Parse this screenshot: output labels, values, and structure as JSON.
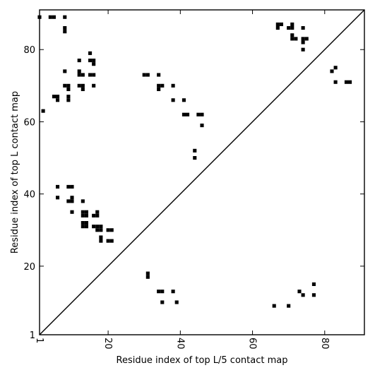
{
  "chart_data": {
    "type": "scatter",
    "title": "",
    "xlabel": "Residue index of top L/5 contact map",
    "ylabel": "Residue index of top L contact map",
    "xlim": [
      1,
      91
    ],
    "ylim": [
      1,
      91
    ],
    "x_ticks": [
      {
        "value": 1,
        "label": "1"
      },
      {
        "value": 20,
        "label": "20"
      },
      {
        "value": 40,
        "label": "40"
      },
      {
        "value": 60,
        "label": "60"
      },
      {
        "value": 80,
        "label": "80"
      }
    ],
    "y_ticks": [
      {
        "value": 1,
        "label": "1"
      },
      {
        "value": 20,
        "label": "20"
      },
      {
        "value": 40,
        "label": "40"
      },
      {
        "value": 60,
        "label": "60"
      },
      {
        "value": 80,
        "label": "80"
      }
    ],
    "x_tick_rotation": 90,
    "grid": false,
    "diagonal": true,
    "marker": "square",
    "marker_color": "#000000",
    "series": [
      {
        "region": "upper-left",
        "points": [
          [
            1,
            89
          ],
          [
            2,
            63
          ],
          [
            4,
            89
          ],
          [
            5,
            89
          ],
          [
            8,
            89
          ],
          [
            8,
            86
          ],
          [
            8,
            85
          ],
          [
            8,
            74
          ],
          [
            8,
            70
          ],
          [
            9,
            70
          ],
          [
            9,
            69
          ],
          [
            9,
            67
          ],
          [
            9,
            66
          ],
          [
            5,
            67
          ],
          [
            6,
            67
          ],
          [
            6,
            66
          ],
          [
            12,
            77
          ],
          [
            12,
            74
          ],
          [
            12,
            73
          ],
          [
            13,
            73
          ],
          [
            12,
            70
          ],
          [
            13,
            70
          ],
          [
            13,
            69
          ],
          [
            15,
            79
          ],
          [
            15,
            77
          ],
          [
            16,
            77
          ],
          [
            16,
            76
          ],
          [
            15,
            73
          ],
          [
            16,
            73
          ],
          [
            16,
            70
          ],
          [
            30,
            73
          ],
          [
            31,
            73
          ],
          [
            34,
            73
          ],
          [
            34,
            70
          ],
          [
            34,
            69
          ],
          [
            35,
            70
          ],
          [
            38,
            70
          ],
          [
            38,
            66
          ],
          [
            41,
            66
          ],
          [
            41,
            62
          ],
          [
            42,
            62
          ],
          [
            45,
            62
          ],
          [
            46,
            62
          ],
          [
            46,
            59
          ],
          [
            44,
            52
          ],
          [
            44,
            50
          ],
          [
            6,
            42
          ],
          [
            9,
            42
          ],
          [
            10,
            42
          ],
          [
            6,
            39
          ],
          [
            10,
            39
          ],
          [
            9,
            38
          ],
          [
            10,
            38
          ],
          [
            13,
            38
          ],
          [
            10,
            35
          ],
          [
            13,
            35
          ],
          [
            14,
            35
          ],
          [
            13,
            34
          ],
          [
            14,
            34
          ],
          [
            17,
            35
          ],
          [
            16,
            34
          ],
          [
            17,
            34
          ],
          [
            13,
            32
          ],
          [
            14,
            32
          ],
          [
            13,
            31
          ],
          [
            14,
            31
          ],
          [
            16,
            31
          ],
          [
            17,
            31
          ],
          [
            18,
            31
          ],
          [
            17,
            30
          ],
          [
            18,
            30
          ],
          [
            20,
            30
          ],
          [
            21,
            30
          ],
          [
            18,
            28
          ],
          [
            18,
            27
          ],
          [
            20,
            27
          ],
          [
            21,
            27
          ]
        ]
      },
      {
        "region": "upper-right",
        "points": [
          [
            67,
            87
          ],
          [
            68,
            87
          ],
          [
            67,
            86
          ],
          [
            70,
            86
          ],
          [
            71,
            86
          ],
          [
            71,
            87
          ],
          [
            71,
            84
          ],
          [
            71,
            83
          ],
          [
            72,
            83
          ],
          [
            74,
            86
          ],
          [
            74,
            83
          ],
          [
            75,
            83
          ],
          [
            74,
            82
          ],
          [
            74,
            80
          ],
          [
            82,
            74
          ],
          [
            83,
            75
          ],
          [
            83,
            71
          ],
          [
            86,
            71
          ],
          [
            87,
            71
          ]
        ]
      },
      {
        "region": "lower",
        "points": [
          [
            31,
            18
          ],
          [
            31,
            17
          ],
          [
            34,
            13
          ],
          [
            35,
            13
          ],
          [
            38,
            13
          ],
          [
            35,
            10
          ],
          [
            39,
            10
          ],
          [
            66,
            9
          ],
          [
            70,
            9
          ],
          [
            73,
            13
          ],
          [
            74,
            12
          ],
          [
            77,
            15
          ],
          [
            77,
            12
          ]
        ]
      }
    ]
  }
}
